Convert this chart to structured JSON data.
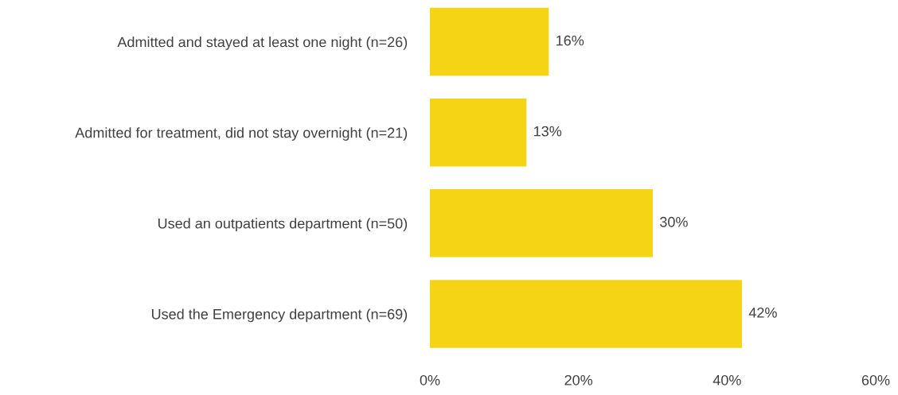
{
  "chart_data": {
    "type": "bar",
    "orientation": "horizontal",
    "categories": [
      "Admitted and stayed at least one night (n=26)",
      "Admitted for treatment, did not stay overnight (n=21)",
      "Used an outpatients department (n=50)",
      "Used the Emergency department (n=69)"
    ],
    "values": [
      16,
      13,
      30,
      42
    ],
    "value_labels": [
      "16%",
      "13%",
      "30%",
      "42%"
    ],
    "color": "#f5d415",
    "xlim": [
      0,
      60
    ],
    "xticks": [
      {
        "value": 0,
        "label": "0%"
      },
      {
        "value": 20,
        "label": "20%"
      },
      {
        "value": 40,
        "label": "40%"
      },
      {
        "value": 60,
        "label": "60%"
      }
    ],
    "grid": false,
    "legend": false
  }
}
